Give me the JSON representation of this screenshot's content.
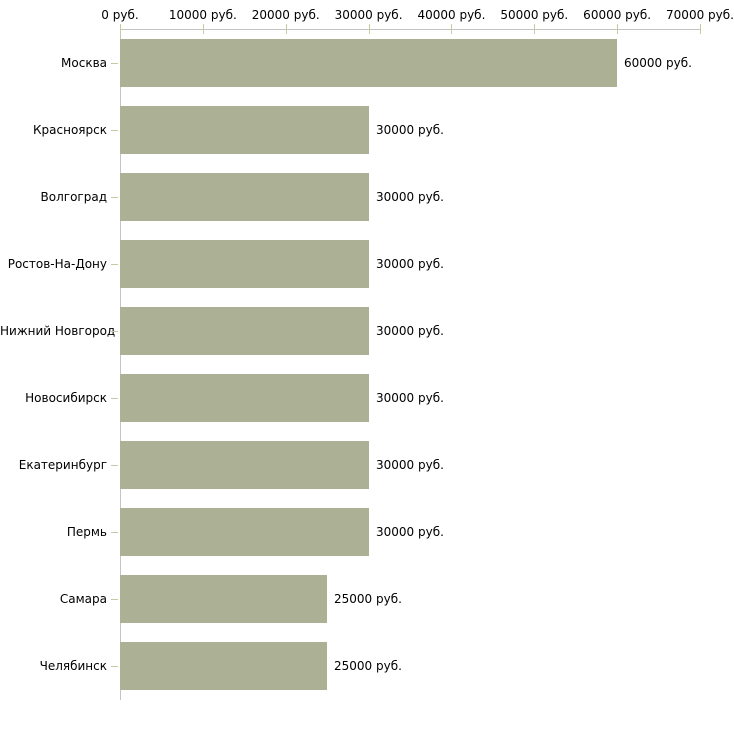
{
  "chart_data": {
    "type": "bar",
    "orientation": "horizontal",
    "title": "",
    "xlabel": "",
    "ylabel": "",
    "legend": "none",
    "grid": "off",
    "categories": [
      "Москва",
      "Красноярск",
      "Волгоград",
      "Ростов-На-Дону",
      "Нижний Новгород",
      "Новосибирск",
      "Екатеринбург",
      "Пермь",
      "Самара",
      "Челябинск"
    ],
    "values": [
      60000,
      30000,
      30000,
      30000,
      30000,
      30000,
      30000,
      30000,
      25000,
      25000
    ],
    "value_labels": [
      "60000 руб.",
      "30000 руб.",
      "30000 руб.",
      "30000 руб.",
      "30000 руб.",
      "30000 руб.",
      "30000 руб.",
      "30000 руб.",
      "25000 руб.",
      "25000 руб."
    ],
    "x_axis": {
      "position": "top",
      "min": 0,
      "max": 70000,
      "tick_interval": 10000,
      "tick_labels": [
        "0 руб.",
        "10000 руб.",
        "20000 руб.",
        "30000 руб.",
        "40000 руб.",
        "50000 руб.",
        "60000 руб.",
        "70000 руб."
      ]
    },
    "colors": {
      "bar": "#acb195",
      "axis_line": "#c4c4c0",
      "tick": "#c8c8a2",
      "text": "#000000",
      "background": "#ffffff"
    }
  }
}
